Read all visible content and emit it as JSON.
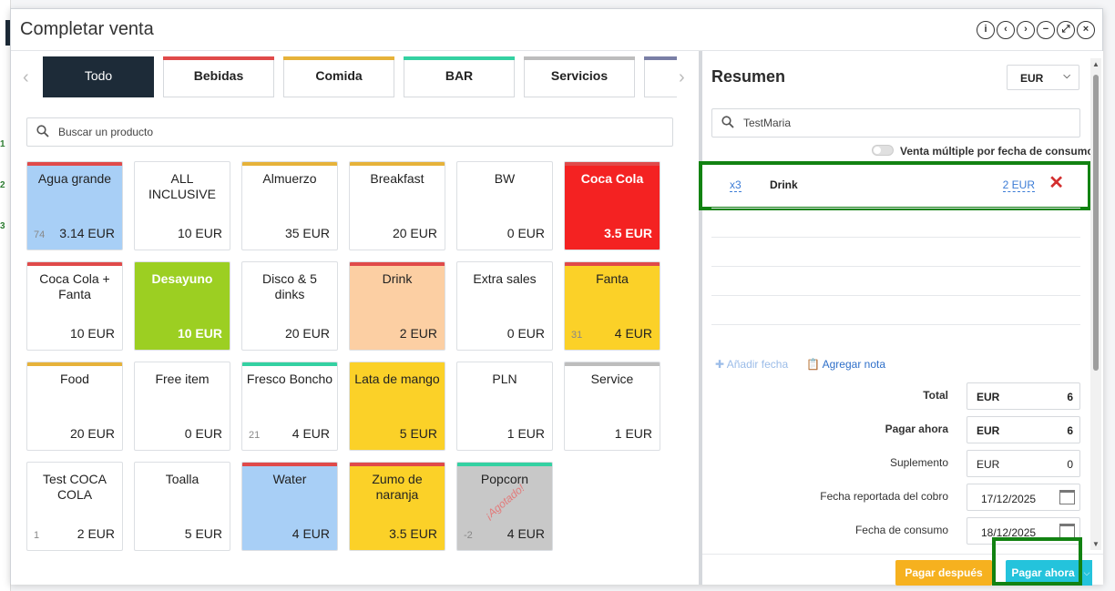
{
  "window": {
    "title": "Completar venta",
    "controls": [
      "i",
      "‹",
      "›",
      "−",
      "⤢",
      "×"
    ]
  },
  "background": {
    "row_numbers": [
      "1",
      "2",
      "3"
    ]
  },
  "categories": [
    {
      "label": "Todo",
      "active": true,
      "color": "#1d2b38"
    },
    {
      "label": "Bebidas",
      "active": false,
      "color": "#e04a4a"
    },
    {
      "label": "Comida",
      "active": false,
      "color": "#e6b23a"
    },
    {
      "label": "BAR",
      "active": false,
      "color": "#34d1a2"
    },
    {
      "label": "Servicios",
      "active": false,
      "color": "#bdbdbd"
    },
    {
      "label": "",
      "active": false,
      "color": "#7a7fa6"
    }
  ],
  "product_search": {
    "placeholder": "Buscar un producto"
  },
  "products": [
    {
      "name": "Agua grande",
      "price": "3.14 EUR",
      "stock": "74",
      "bg": "#a8cff6",
      "bar": "#e04a4a",
      "dark": false
    },
    {
      "name": "ALL INCLUSIVE",
      "price": "10 EUR",
      "stock": "",
      "bg": "#ffffff",
      "bar": "",
      "dark": false
    },
    {
      "name": "Almuerzo",
      "price": "35 EUR",
      "stock": "",
      "bg": "#ffffff",
      "bar": "#e6b23a",
      "dark": false
    },
    {
      "name": "Breakfast",
      "price": "20 EUR",
      "stock": "",
      "bg": "#ffffff",
      "bar": "#e6b23a",
      "dark": false
    },
    {
      "name": "BW",
      "price": "0 EUR",
      "stock": "",
      "bg": "#ffffff",
      "bar": "",
      "dark": false
    },
    {
      "name": "Coca Cola",
      "price": "3.5 EUR",
      "stock": "",
      "bg": "#f42222",
      "bar": "#e04a4a",
      "dark": true
    },
    {
      "name": "Coca Cola + Fanta",
      "price": "10 EUR",
      "stock": "",
      "bg": "#ffffff",
      "bar": "#e04a4a",
      "dark": false
    },
    {
      "name": "Desayuno",
      "price": "10 EUR",
      "stock": "",
      "bg": "#9ccf22",
      "bar": "",
      "dark": true
    },
    {
      "name": "Disco & 5 dinks",
      "price": "20 EUR",
      "stock": "",
      "bg": "#ffffff",
      "bar": "",
      "dark": false
    },
    {
      "name": "Drink",
      "price": "2 EUR",
      "stock": "",
      "bg": "#fccfa3",
      "bar": "#e04a4a",
      "dark": false
    },
    {
      "name": "Extra sales",
      "price": "0 EUR",
      "stock": "",
      "bg": "#ffffff",
      "bar": "",
      "dark": false
    },
    {
      "name": "Fanta",
      "price": "4 EUR",
      "stock": "31",
      "bg": "#fbd128",
      "bar": "#e04a4a",
      "dark": false
    },
    {
      "name": "Food",
      "price": "20 EUR",
      "stock": "",
      "bg": "#ffffff",
      "bar": "#e6b23a",
      "dark": false
    },
    {
      "name": "Free item",
      "price": "0 EUR",
      "stock": "",
      "bg": "#ffffff",
      "bar": "",
      "dark": false
    },
    {
      "name": "Fresco Boncho",
      "price": "4 EUR",
      "stock": "21",
      "bg": "#ffffff",
      "bar": "#34d1a2",
      "dark": false
    },
    {
      "name": "Lata de mango",
      "price": "5 EUR",
      "stock": "",
      "bg": "#fbd128",
      "bar": "",
      "dark": false
    },
    {
      "name": "PLN",
      "price": "1 EUR",
      "stock": "",
      "bg": "#ffffff",
      "bar": "",
      "dark": false
    },
    {
      "name": "Service",
      "price": "1 EUR",
      "stock": "",
      "bg": "#ffffff",
      "bar": "#bdbdbd",
      "dark": false
    },
    {
      "name": "Test COCA COLA",
      "price": "2 EUR",
      "stock": "1",
      "bg": "#ffffff",
      "bar": "",
      "dark": false
    },
    {
      "name": "Toalla",
      "price": "5 EUR",
      "stock": "",
      "bg": "#ffffff",
      "bar": "",
      "dark": false
    },
    {
      "name": "Water",
      "price": "4 EUR",
      "stock": "",
      "bg": "#a8cff6",
      "bar": "#e04a4a",
      "dark": false
    },
    {
      "name": "Zumo de naranja",
      "price": "3.5 EUR",
      "stock": "",
      "bg": "#fbd128",
      "bar": "#e04a4a",
      "dark": false
    },
    {
      "name": "Popcorn",
      "price": "4 EUR",
      "stock": "-2",
      "bg": "#c8c8c8",
      "bar": "#34d1a2",
      "dark": false,
      "stamp": "¡Agotado!"
    }
  ],
  "summary": {
    "title": "Resumen",
    "currency": "EUR",
    "client": "TestMaria",
    "multi_sale_label": "Venta múltiple por fecha de consumo",
    "line_items": [
      {
        "qty": "x3",
        "name": "Drink",
        "price": "2 EUR"
      }
    ],
    "add_date_label": "Añadir fecha",
    "add_note_label": "Agregar nota",
    "fields": {
      "total": {
        "label": "Total",
        "currency": "EUR",
        "value": "6"
      },
      "pay_now": {
        "label": "Pagar ahora",
        "currency": "EUR",
        "value": "6"
      },
      "supplement": {
        "label": "Suplemento",
        "currency": "EUR",
        "value": "0"
      },
      "reported_date": {
        "label": "Fecha reportada del cobro",
        "value": "17/12/2025"
      },
      "consumption_date": {
        "label": "Fecha de consumo",
        "value": "18/12/2025"
      }
    },
    "buttons": {
      "pay_later": "Pagar después",
      "pay_now": "Pagar ahora"
    }
  },
  "colors": {
    "highlight": "#128212",
    "pay_later_bg": "#f6b11f",
    "pay_now_bg": "#24c3dc",
    "link_blue": "#3c7cd6"
  }
}
